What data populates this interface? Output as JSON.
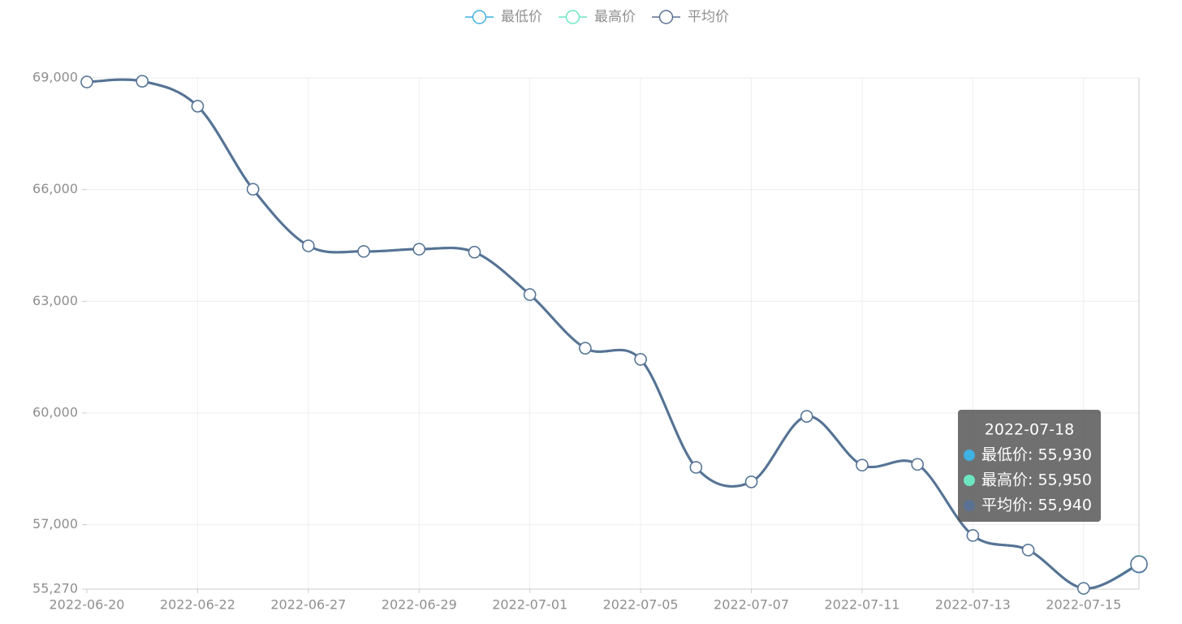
{
  "chart_data": {
    "type": "line",
    "categories": [
      "2022-06-20",
      null,
      "2022-06-22",
      null,
      "2022-06-27",
      null,
      "2022-06-29",
      null,
      "2022-07-01",
      null,
      "2022-07-05",
      null,
      "2022-07-07",
      null,
      "2022-07-11",
      null,
      "2022-07-13",
      null,
      "2022-07-15",
      null
    ],
    "series": [
      {
        "name": "最低价",
        "color": "#3fb1e3",
        "values": [
          68890,
          68910,
          68240,
          66010,
          64490,
          64340,
          64400,
          64320,
          63180,
          61740,
          61440,
          58540,
          58150,
          59910,
          58600,
          58620,
          56710,
          56320,
          55290,
          55930
        ]
      },
      {
        "name": "最高价",
        "color": "#6be6c1",
        "values": [
          68890,
          68910,
          68240,
          66010,
          64490,
          64340,
          64400,
          64320,
          63180,
          61740,
          61440,
          58540,
          58150,
          59910,
          58600,
          58620,
          56710,
          56320,
          55290,
          55950
        ]
      },
      {
        "name": "平均价",
        "color": "#5a7194",
        "values": [
          68890,
          68910,
          68240,
          66010,
          64490,
          64340,
          64400,
          64320,
          63180,
          61740,
          61440,
          58540,
          58150,
          59910,
          58600,
          58620,
          56710,
          56320,
          55290,
          55940
        ]
      }
    ],
    "ylim": [
      55270,
      69000
    ],
    "yticks": [
      {
        "value": 55270,
        "label": "55,270"
      },
      {
        "value": 57000,
        "label": "57,000"
      },
      {
        "value": 60000,
        "label": "60,000"
      },
      {
        "value": 63000,
        "label": "63,000"
      },
      {
        "value": 66000,
        "label": "66,000"
      },
      {
        "value": 69000,
        "label": "69,000"
      }
    ],
    "grid": true,
    "smooth": true,
    "legend": "top",
    "tooltip": {
      "title": "2022-07-18",
      "items": [
        {
          "value": 55930,
          "label": "最低价: 55,930"
        },
        {
          "value": 55950,
          "label": "最高价: 55,950"
        },
        {
          "value": 55940,
          "label": "平均价: 55,940"
        }
      ]
    }
  }
}
